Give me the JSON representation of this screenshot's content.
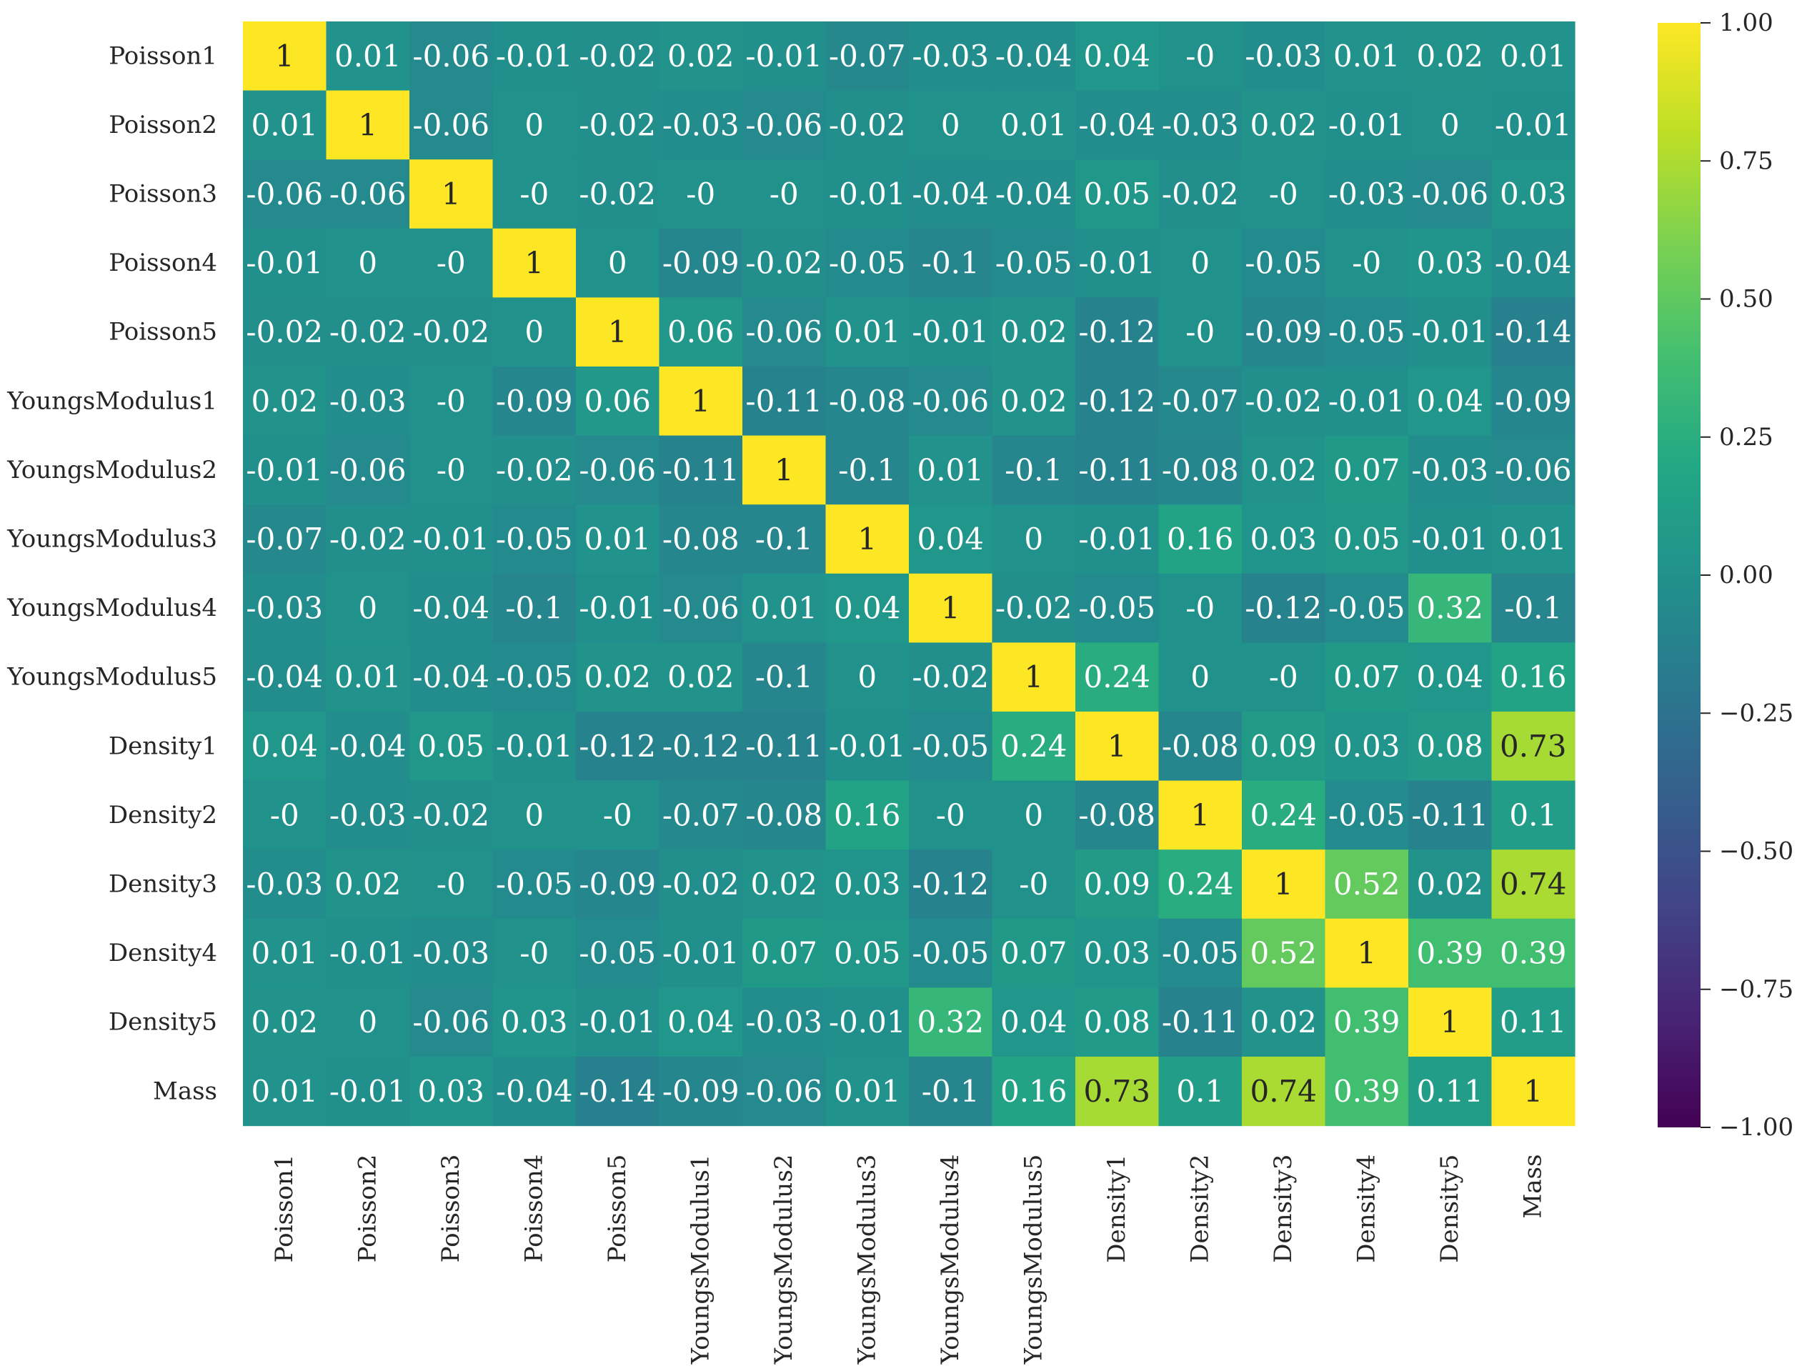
{
  "chart_data": {
    "type": "heatmap",
    "title": "",
    "xlabel": "",
    "ylabel": "",
    "colormap": "viridis",
    "vmin": -1.0,
    "vmax": 1.0,
    "rows": [
      "Poisson1",
      "Poisson2",
      "Poisson3",
      "Poisson4",
      "Poisson5",
      "YoungsModulus1",
      "YoungsModulus2",
      "YoungsModulus3",
      "YoungsModulus4",
      "YoungsModulus5",
      "Density1",
      "Density2",
      "Density3",
      "Density4",
      "Density5",
      "Mass"
    ],
    "columns": [
      "Poisson1",
      "Poisson2",
      "Poisson3",
      "Poisson4",
      "Poisson5",
      "YoungsModulus1",
      "YoungsModulus2",
      "YoungsModulus3",
      "YoungsModulus4",
      "YoungsModulus5",
      "Density1",
      "Density2",
      "Density3",
      "Density4",
      "Density5",
      "Mass"
    ],
    "values": [
      [
        1,
        0.01,
        -0.06,
        -0.01,
        -0.02,
        0.02,
        -0.01,
        -0.07,
        -0.03,
        -0.04,
        0.04,
        0,
        -0.03,
        0.01,
        0.02,
        0.01
      ],
      [
        0.01,
        1,
        -0.06,
        0,
        -0.02,
        -0.03,
        -0.06,
        -0.02,
        0,
        0.01,
        -0.04,
        -0.03,
        0.02,
        -0.01,
        0,
        -0.01
      ],
      [
        -0.06,
        -0.06,
        1,
        0,
        -0.02,
        0,
        0,
        -0.01,
        -0.04,
        -0.04,
        0.05,
        -0.02,
        0,
        -0.03,
        -0.06,
        0.03
      ],
      [
        -0.01,
        0,
        0,
        1,
        0,
        -0.09,
        -0.02,
        -0.05,
        -0.1,
        -0.05,
        -0.01,
        0,
        -0.05,
        0,
        0.03,
        -0.04
      ],
      [
        -0.02,
        -0.02,
        -0.02,
        0,
        1,
        0.06,
        -0.06,
        0.01,
        -0.01,
        0.02,
        -0.12,
        0,
        -0.09,
        -0.05,
        -0.01,
        -0.14
      ],
      [
        0.02,
        -0.03,
        0,
        -0.09,
        0.06,
        1,
        -0.11,
        -0.08,
        -0.06,
        0.02,
        -0.12,
        -0.07,
        -0.02,
        -0.01,
        0.04,
        -0.09
      ],
      [
        -0.01,
        -0.06,
        0,
        -0.02,
        -0.06,
        -0.11,
        1,
        -0.1,
        0.01,
        -0.1,
        -0.11,
        -0.08,
        0.02,
        0.07,
        -0.03,
        -0.06
      ],
      [
        -0.07,
        -0.02,
        -0.01,
        -0.05,
        0.01,
        -0.08,
        -0.1,
        1,
        0.04,
        0,
        -0.01,
        0.16,
        0.03,
        0.05,
        -0.01,
        0.01
      ],
      [
        -0.03,
        0,
        -0.04,
        -0.1,
        -0.01,
        -0.06,
        0.01,
        0.04,
        1,
        -0.02,
        -0.05,
        0,
        -0.12,
        -0.05,
        0.32,
        -0.1
      ],
      [
        -0.04,
        0.01,
        -0.04,
        -0.05,
        0.02,
        0.02,
        -0.1,
        0,
        -0.02,
        1,
        0.24,
        0,
        0,
        0.07,
        0.04,
        0.16
      ],
      [
        0.04,
        -0.04,
        0.05,
        -0.01,
        -0.12,
        -0.12,
        -0.11,
        -0.01,
        -0.05,
        0.24,
        1,
        -0.08,
        0.09,
        0.03,
        0.08,
        0.73
      ],
      [
        0,
        -0.03,
        -0.02,
        0,
        0,
        -0.07,
        -0.08,
        0.16,
        0,
        0,
        -0.08,
        1,
        0.24,
        -0.05,
        -0.11,
        0.1
      ],
      [
        -0.03,
        0.02,
        0,
        -0.05,
        -0.09,
        -0.02,
        0.02,
        0.03,
        -0.12,
        0,
        0.09,
        0.24,
        1,
        0.52,
        0.02,
        0.74
      ],
      [
        0.01,
        -0.01,
        -0.03,
        0,
        -0.05,
        -0.01,
        0.07,
        0.05,
        -0.05,
        0.07,
        0.03,
        -0.05,
        0.52,
        1,
        0.39,
        0.39
      ],
      [
        0.02,
        0,
        -0.06,
        0.03,
        -0.01,
        0.04,
        -0.03,
        -0.01,
        0.32,
        0.04,
        0.08,
        -0.11,
        0.02,
        0.39,
        1,
        0.11
      ],
      [
        0.01,
        -0.01,
        0.03,
        -0.04,
        -0.14,
        -0.09,
        -0.06,
        0.01,
        -0.1,
        0.16,
        0.73,
        0.1,
        0.74,
        0.39,
        0.11,
        1
      ]
    ],
    "value_labels": [
      [
        "1",
        "0.01",
        "-0.06",
        "-0.01",
        "-0.02",
        "0.02",
        "-0.01",
        "-0.07",
        "-0.03",
        "-0.04",
        "0.04",
        "-0",
        "-0.03",
        "0.01",
        "0.02",
        "0.01"
      ],
      [
        "0.01",
        "1",
        "-0.06",
        "0",
        "-0.02",
        "-0.03",
        "-0.06",
        "-0.02",
        "0",
        "0.01",
        "-0.04",
        "-0.03",
        "0.02",
        "-0.01",
        "0",
        "-0.01"
      ],
      [
        "-0.06",
        "-0.06",
        "1",
        "-0",
        "-0.02",
        "-0",
        "-0",
        "-0.01",
        "-0.04",
        "-0.04",
        "0.05",
        "-0.02",
        "-0",
        "-0.03",
        "-0.06",
        "0.03"
      ],
      [
        "-0.01",
        "0",
        "-0",
        "1",
        "0",
        "-0.09",
        "-0.02",
        "-0.05",
        "-0.1",
        "-0.05",
        "-0.01",
        "0",
        "-0.05",
        "-0",
        "0.03",
        "-0.04"
      ],
      [
        "-0.02",
        "-0.02",
        "-0.02",
        "0",
        "1",
        "0.06",
        "-0.06",
        "0.01",
        "-0.01",
        "0.02",
        "-0.12",
        "-0",
        "-0.09",
        "-0.05",
        "-0.01",
        "-0.14"
      ],
      [
        "0.02",
        "-0.03",
        "-0",
        "-0.09",
        "0.06",
        "1",
        "-0.11",
        "-0.08",
        "-0.06",
        "0.02",
        "-0.12",
        "-0.07",
        "-0.02",
        "-0.01",
        "0.04",
        "-0.09"
      ],
      [
        "-0.01",
        "-0.06",
        "-0",
        "-0.02",
        "-0.06",
        "-0.11",
        "1",
        "-0.1",
        "0.01",
        "-0.1",
        "-0.11",
        "-0.08",
        "0.02",
        "0.07",
        "-0.03",
        "-0.06"
      ],
      [
        "-0.07",
        "-0.02",
        "-0.01",
        "-0.05",
        "0.01",
        "-0.08",
        "-0.1",
        "1",
        "0.04",
        "0",
        "-0.01",
        "0.16",
        "0.03",
        "0.05",
        "-0.01",
        "0.01"
      ],
      [
        "-0.03",
        "0",
        "-0.04",
        "-0.1",
        "-0.01",
        "-0.06",
        "0.01",
        "0.04",
        "1",
        "-0.02",
        "-0.05",
        "-0",
        "-0.12",
        "-0.05",
        "0.32",
        "-0.1"
      ],
      [
        "-0.04",
        "0.01",
        "-0.04",
        "-0.05",
        "0.02",
        "0.02",
        "-0.1",
        "0",
        "-0.02",
        "1",
        "0.24",
        "0",
        "-0",
        "0.07",
        "0.04",
        "0.16"
      ],
      [
        "0.04",
        "-0.04",
        "0.05",
        "-0.01",
        "-0.12",
        "-0.12",
        "-0.11",
        "-0.01",
        "-0.05",
        "0.24",
        "1",
        "-0.08",
        "0.09",
        "0.03",
        "0.08",
        "0.73"
      ],
      [
        "-0",
        "-0.03",
        "-0.02",
        "0",
        "-0",
        "-0.07",
        "-0.08",
        "0.16",
        "-0",
        "0",
        "-0.08",
        "1",
        "0.24",
        "-0.05",
        "-0.11",
        "0.1"
      ],
      [
        "-0.03",
        "0.02",
        "-0",
        "-0.05",
        "-0.09",
        "-0.02",
        "0.02",
        "0.03",
        "-0.12",
        "-0",
        "0.09",
        "0.24",
        "1",
        "0.52",
        "0.02",
        "0.74"
      ],
      [
        "0.01",
        "-0.01",
        "-0.03",
        "-0",
        "-0.05",
        "-0.01",
        "0.07",
        "0.05",
        "-0.05",
        "0.07",
        "0.03",
        "-0.05",
        "0.52",
        "1",
        "0.39",
        "0.39"
      ],
      [
        "0.02",
        "0",
        "-0.06",
        "0.03",
        "-0.01",
        "0.04",
        "-0.03",
        "-0.01",
        "0.32",
        "0.04",
        "0.08",
        "-0.11",
        "0.02",
        "0.39",
        "1",
        "0.11"
      ],
      [
        "0.01",
        "-0.01",
        "0.03",
        "-0.04",
        "-0.14",
        "-0.09",
        "-0.06",
        "0.01",
        "-0.1",
        "0.16",
        "0.73",
        "0.1",
        "0.74",
        "0.39",
        "0.11",
        "1"
      ]
    ],
    "colorbar": {
      "ticks": [
        1.0,
        0.75,
        0.5,
        0.25,
        0.0,
        -0.25,
        -0.5,
        -0.75,
        -1.0
      ],
      "tick_labels": [
        "1.00",
        "0.75",
        "0.50",
        "0.25",
        "0.00",
        "−0.25",
        "−0.50",
        "−0.75",
        "−1.00"
      ]
    },
    "grid": false,
    "legend": "colorbar-right"
  }
}
